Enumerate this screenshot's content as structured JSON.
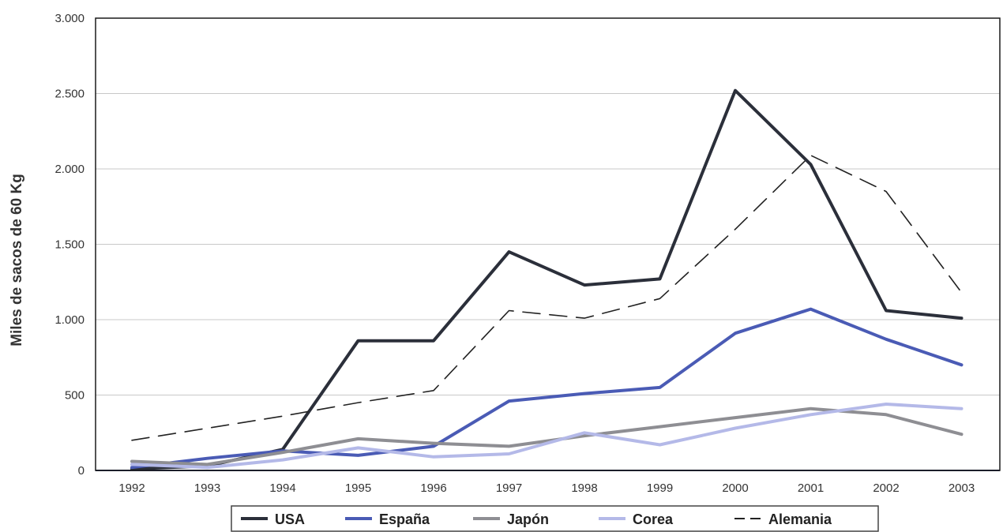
{
  "chart_data": {
    "type": "line",
    "title": "",
    "xlabel": "",
    "ylabel": "Miles de sacos de 60 Kg",
    "categories": [
      "1992",
      "1993",
      "1994",
      "1995",
      "1996",
      "1997",
      "1998",
      "1999",
      "2000",
      "2001",
      "2002",
      "2003"
    ],
    "ylim": [
      0,
      3000
    ],
    "yticks": [
      0,
      500,
      1000,
      1500,
      2000,
      2500,
      3000
    ],
    "ytick_labels": [
      "0",
      "500",
      "1.000",
      "1.500",
      "2.000",
      "2.500",
      "3.000"
    ],
    "grid": true,
    "legend_position": "bottom",
    "series": [
      {
        "name": "USA",
        "color": "#2b2f3a",
        "dash": "solid",
        "values": [
          10,
          30,
          140,
          860,
          860,
          1450,
          1230,
          1270,
          2520,
          2030,
          1060,
          1010
        ]
      },
      {
        "name": "España",
        "color": "#4a5bb5",
        "dash": "solid",
        "values": [
          20,
          80,
          130,
          100,
          160,
          460,
          510,
          550,
          910,
          1070,
          870,
          700
        ]
      },
      {
        "name": "Japón",
        "color": "#8e8e93",
        "dash": "solid",
        "values": [
          60,
          40,
          120,
          210,
          180,
          160,
          230,
          290,
          350,
          410,
          370,
          240
        ]
      },
      {
        "name": "Corea",
        "color": "#b4b9e8",
        "dash": "solid",
        "values": [
          40,
          20,
          70,
          150,
          90,
          110,
          250,
          170,
          280,
          370,
          440,
          410
        ]
      },
      {
        "name": "Alemania",
        "color": "#222222",
        "dash": "dashed",
        "values": [
          200,
          280,
          360,
          450,
          530,
          1060,
          1010,
          1140,
          1600,
          2090,
          1850,
          1180
        ]
      }
    ]
  }
}
